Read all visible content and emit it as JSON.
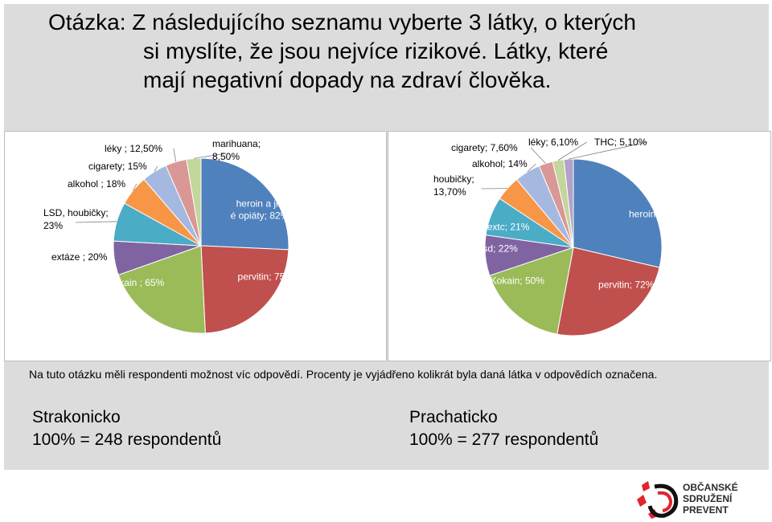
{
  "title": {
    "line1": "Otázka: Z následujícího seznamu vyberte 3 látky, o kterých",
    "line2": "si myslíte, že jsou nejvíce rizikové. Látky, které",
    "line3": "mají negativní dopady na zdraví člověka."
  },
  "note": "Na tuto otázku měli respondenti možnost víc odpovědí. Procenty je vyjádřeno kolikrát byla daná látka v odpovědích označena.",
  "regions": [
    {
      "name": "Strakonicko",
      "total": "100% = 248 respondentů"
    },
    {
      "name": "Prachaticko",
      "total": "100% =  277 respondentů"
    }
  ],
  "logo": {
    "line1": "OBČANSKÉ",
    "line2": "SDRUŽENÍ",
    "line3": "PREVENT"
  },
  "colors": {
    "blue": "#4f81bd",
    "red": "#c0504d",
    "green": "#9bbb59",
    "purple": "#8064a2",
    "teal": "#4bacc6",
    "orange": "#f79646",
    "lightblue": "#a5b9e0",
    "pink": "#d99795",
    "lightgreen": "#c3d69b",
    "lavender": "#b3a2c7",
    "logo_red": "#e1242d"
  },
  "chart_data": [
    {
      "type": "pie",
      "slices": [
        {
          "label": "heroin a jiné opiáty; 82%",
          "value": 82,
          "color": "#4f81bd"
        },
        {
          "label": "pervitin; 75%",
          "value": 75,
          "color": "#c0504d"
        },
        {
          "label": "kokain ; 65%",
          "value": 65,
          "color": "#9bbb59"
        },
        {
          "label": "extáze ; 20%",
          "value": 20,
          "color": "#8064a2"
        },
        {
          "label": "LSD, houbičky; 23%",
          "value": 23,
          "color": "#4bacc6"
        },
        {
          "label": "alkohol ; 18%",
          "value": 18,
          "color": "#f79646"
        },
        {
          "label": "cigarety; 15%",
          "value": 15,
          "color": "#a5b9e0"
        },
        {
          "label": "léky ; 12,50%",
          "value": 12.5,
          "color": "#d99795"
        },
        {
          "label": "marihuana; 8,50%",
          "value": 8.5,
          "color": "#c3d69b"
        }
      ]
    },
    {
      "type": "pie",
      "slices": [
        {
          "label": "heroin ; 85%",
          "value": 85,
          "color": "#4f81bd"
        },
        {
          "label": "pervitin; 72%",
          "value": 72,
          "color": "#c0504d"
        },
        {
          "label": "Kokain; 50%",
          "value": 50,
          "color": "#9bbb59"
        },
        {
          "label": "lsd; 22%",
          "value": 22,
          "color": "#8064a2"
        },
        {
          "label": "extc; 21%",
          "value": 21,
          "color": "#4bacc6"
        },
        {
          "label": "houbičky; 13,70%",
          "value": 13.7,
          "color": "#f79646"
        },
        {
          "label": "alkohol; 14%",
          "value": 14,
          "color": "#a5b9e0"
        },
        {
          "label": "cigarety; 7,60%",
          "value": 7.6,
          "color": "#d99795"
        },
        {
          "label": "léky; 6,10%",
          "value": 6.1,
          "color": "#c3d69b"
        },
        {
          "label": "THC; 5,10%",
          "value": 5.1,
          "color": "#b3a2c7"
        }
      ]
    }
  ]
}
